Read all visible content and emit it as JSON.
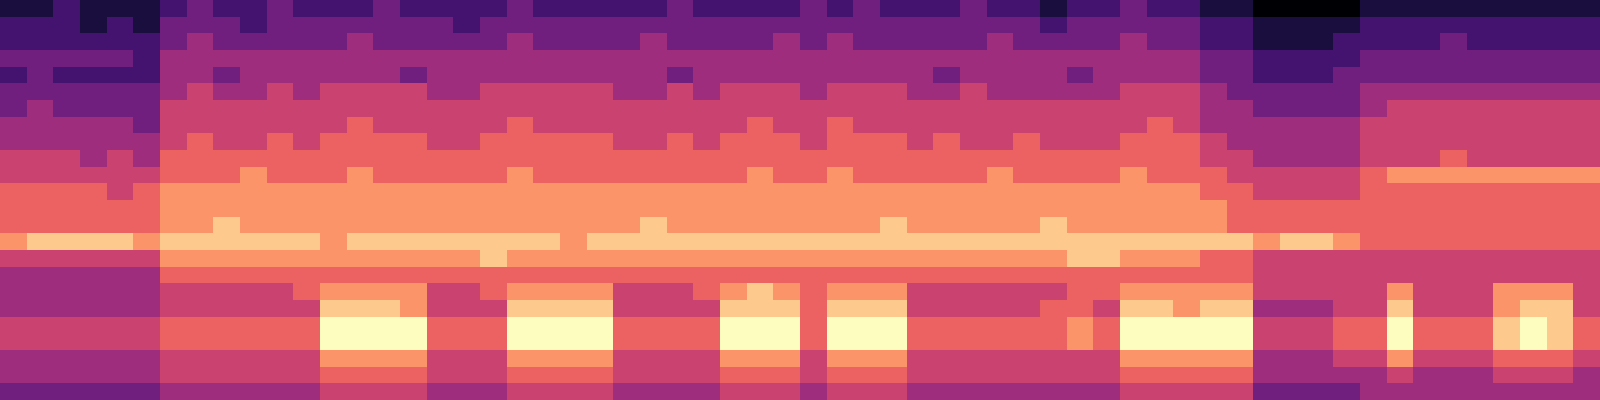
{
  "chart_data": {
    "type": "heatmap",
    "tick_labels": false,
    "zlim": [
      0,
      9
    ],
    "z": [
      [
        1,
        1,
        2,
        1,
        1,
        1,
        2,
        3,
        2,
        2,
        3,
        2,
        2,
        2,
        3,
        2,
        2,
        2,
        2,
        3,
        2,
        2,
        2,
        2,
        2,
        3,
        2,
        2,
        2,
        2,
        3,
        2,
        3,
        2,
        2,
        2,
        3,
        2,
        2,
        1,
        2,
        2,
        3,
        2,
        2,
        1,
        1,
        0,
        0,
        0,
        0,
        1,
        1,
        1,
        1,
        1,
        1,
        1,
        1,
        1
      ],
      [
        2,
        2,
        2,
        1,
        2,
        1,
        3,
        3,
        3,
        2,
        3,
        3,
        3,
        3,
        3,
        3,
        3,
        2,
        3,
        3,
        3,
        3,
        3,
        3,
        3,
        3,
        3,
        3,
        3,
        3,
        3,
        3,
        3,
        3,
        3,
        3,
        3,
        3,
        3,
        2,
        3,
        3,
        3,
        3,
        3,
        2,
        2,
        1,
        1,
        1,
        1,
        2,
        2,
        2,
        2,
        2,
        2,
        2,
        2,
        2
      ],
      [
        2,
        2,
        2,
        2,
        2,
        2,
        3,
        4,
        3,
        3,
        3,
        3,
        3,
        4,
        3,
        3,
        3,
        3,
        3,
        4,
        3,
        3,
        3,
        3,
        4,
        3,
        3,
        3,
        3,
        4,
        3,
        4,
        3,
        3,
        3,
        3,
        3,
        4,
        3,
        3,
        3,
        3,
        4,
        3,
        3,
        2,
        2,
        1,
        1,
        1,
        2,
        2,
        2,
        2,
        3,
        2,
        2,
        2,
        2,
        2
      ],
      [
        3,
        3,
        3,
        3,
        3,
        2,
        4,
        4,
        4,
        4,
        4,
        4,
        4,
        4,
        4,
        4,
        4,
        4,
        4,
        4,
        4,
        4,
        4,
        4,
        4,
        4,
        4,
        4,
        4,
        4,
        4,
        4,
        4,
        4,
        4,
        4,
        4,
        4,
        4,
        4,
        4,
        4,
        4,
        4,
        4,
        3,
        3,
        2,
        2,
        2,
        2,
        3,
        3,
        3,
        3,
        3,
        3,
        3,
        3,
        3
      ],
      [
        2,
        3,
        2,
        2,
        2,
        2,
        4,
        4,
        3,
        4,
        4,
        4,
        4,
        4,
        4,
        3,
        4,
        4,
        4,
        4,
        4,
        4,
        4,
        4,
        4,
        3,
        4,
        4,
        4,
        4,
        4,
        4,
        4,
        4,
        4,
        3,
        4,
        4,
        4,
        4,
        3,
        4,
        4,
        4,
        4,
        3,
        3,
        2,
        2,
        2,
        3,
        3,
        3,
        3,
        3,
        3,
        3,
        3,
        3,
        3
      ],
      [
        3,
        3,
        3,
        3,
        3,
        3,
        4,
        5,
        4,
        4,
        5,
        4,
        5,
        5,
        5,
        5,
        4,
        4,
        5,
        5,
        5,
        5,
        5,
        4,
        4,
        5,
        4,
        5,
        5,
        5,
        4,
        5,
        5,
        5,
        4,
        4,
        5,
        4,
        4,
        4,
        4,
        4,
        5,
        5,
        5,
        4,
        3,
        3,
        3,
        3,
        3,
        4,
        4,
        4,
        4,
        4,
        4,
        4,
        4,
        4
      ],
      [
        3,
        4,
        3,
        3,
        3,
        3,
        5,
        5,
        5,
        5,
        5,
        5,
        5,
        5,
        5,
        5,
        5,
        5,
        5,
        5,
        5,
        5,
        5,
        5,
        5,
        5,
        5,
        5,
        5,
        5,
        5,
        5,
        5,
        5,
        5,
        5,
        5,
        5,
        5,
        5,
        5,
        5,
        5,
        5,
        5,
        4,
        4,
        3,
        3,
        3,
        3,
        4,
        5,
        5,
        5,
        5,
        5,
        5,
        5,
        5
      ],
      [
        4,
        4,
        4,
        4,
        4,
        3,
        5,
        5,
        5,
        5,
        5,
        5,
        5,
        6,
        5,
        5,
        5,
        5,
        5,
        6,
        5,
        5,
        5,
        5,
        5,
        5,
        5,
        5,
        6,
        5,
        5,
        6,
        5,
        5,
        5,
        5,
        5,
        5,
        5,
        5,
        5,
        5,
        5,
        6,
        5,
        4,
        4,
        4,
        4,
        4,
        4,
        5,
        5,
        5,
        5,
        5,
        5,
        5,
        5,
        5
      ],
      [
        4,
        4,
        4,
        4,
        4,
        4,
        5,
        6,
        5,
        5,
        6,
        5,
        6,
        6,
        6,
        6,
        5,
        5,
        6,
        6,
        6,
        6,
        6,
        5,
        5,
        6,
        5,
        6,
        6,
        6,
        5,
        6,
        6,
        6,
        5,
        6,
        5,
        5,
        6,
        5,
        5,
        5,
        6,
        6,
        6,
        5,
        4,
        4,
        4,
        4,
        4,
        5,
        5,
        5,
        5,
        5,
        5,
        5,
        5,
        5
      ],
      [
        5,
        5,
        5,
        4,
        5,
        4,
        6,
        6,
        6,
        6,
        6,
        6,
        6,
        6,
        6,
        6,
        6,
        6,
        6,
        6,
        6,
        6,
        6,
        6,
        6,
        6,
        6,
        6,
        6,
        6,
        6,
        6,
        6,
        6,
        6,
        6,
        6,
        6,
        6,
        6,
        6,
        6,
        6,
        6,
        6,
        5,
        5,
        4,
        4,
        4,
        4,
        5,
        5,
        5,
        6,
        5,
        5,
        5,
        5,
        5
      ],
      [
        5,
        5,
        5,
        5,
        5,
        5,
        6,
        6,
        6,
        7,
        6,
        6,
        6,
        7,
        6,
        6,
        6,
        6,
        6,
        7,
        6,
        6,
        6,
        6,
        6,
        6,
        6,
        6,
        7,
        6,
        6,
        7,
        6,
        6,
        6,
        6,
        6,
        7,
        6,
        6,
        6,
        6,
        7,
        6,
        6,
        6,
        5,
        5,
        5,
        5,
        5,
        6,
        7,
        7,
        7,
        7,
        7,
        7,
        7,
        7
      ],
      [
        6,
        6,
        6,
        6,
        5,
        6,
        7,
        7,
        7,
        7,
        7,
        7,
        7,
        7,
        7,
        7,
        7,
        7,
        7,
        7,
        7,
        7,
        7,
        7,
        7,
        7,
        7,
        7,
        7,
        7,
        7,
        7,
        7,
        7,
        7,
        7,
        7,
        7,
        7,
        7,
        7,
        7,
        7,
        7,
        7,
        6,
        6,
        5,
        5,
        5,
        5,
        6,
        6,
        6,
        6,
        6,
        6,
        6,
        6,
        6
      ],
      [
        6,
        6,
        6,
        6,
        6,
        6,
        7,
        7,
        7,
        7,
        7,
        7,
        7,
        7,
        7,
        7,
        7,
        7,
        7,
        7,
        7,
        7,
        7,
        7,
        7,
        7,
        7,
        7,
        7,
        7,
        7,
        7,
        7,
        7,
        7,
        7,
        7,
        7,
        7,
        7,
        7,
        7,
        7,
        7,
        7,
        7,
        6,
        6,
        6,
        6,
        6,
        6,
        6,
        6,
        6,
        6,
        6,
        6,
        6,
        6
      ],
      [
        6,
        6,
        6,
        6,
        6,
        6,
        7,
        7,
        8,
        7,
        7,
        7,
        7,
        7,
        7,
        7,
        7,
        7,
        7,
        7,
        7,
        7,
        7,
        7,
        8,
        7,
        7,
        7,
        7,
        7,
        7,
        7,
        7,
        8,
        7,
        7,
        7,
        7,
        7,
        8,
        7,
        7,
        7,
        7,
        7,
        7,
        6,
        6,
        6,
        6,
        6,
        6,
        6,
        6,
        6,
        6,
        6,
        6,
        6,
        6
      ],
      [
        7,
        8,
        8,
        8,
        8,
        7,
        8,
        8,
        8,
        8,
        8,
        8,
        7,
        8,
        8,
        8,
        8,
        8,
        8,
        8,
        8,
        7,
        8,
        8,
        8,
        8,
        8,
        8,
        8,
        8,
        8,
        8,
        8,
        8,
        8,
        8,
        8,
        8,
        8,
        8,
        8,
        8,
        8,
        8,
        8,
        8,
        8,
        7,
        8,
        8,
        7,
        6,
        6,
        6,
        6,
        6,
        6,
        6,
        6,
        6
      ],
      [
        5,
        5,
        5,
        5,
        5,
        5,
        7,
        7,
        7,
        7,
        7,
        7,
        7,
        7,
        7,
        7,
        7,
        7,
        8,
        7,
        7,
        7,
        7,
        7,
        7,
        7,
        7,
        7,
        7,
        7,
        7,
        7,
        7,
        7,
        7,
        7,
        7,
        7,
        7,
        7,
        8,
        8,
        7,
        7,
        7,
        6,
        6,
        5,
        5,
        5,
        5,
        5,
        5,
        5,
        5,
        5,
        5,
        5,
        5,
        5
      ],
      [
        4,
        4,
        4,
        4,
        4,
        4,
        6,
        6,
        6,
        6,
        6,
        6,
        6,
        6,
        6,
        6,
        6,
        6,
        6,
        6,
        6,
        6,
        6,
        6,
        6,
        6,
        6,
        6,
        6,
        6,
        6,
        6,
        6,
        6,
        6,
        6,
        6,
        6,
        6,
        6,
        6,
        6,
        6,
        6,
        6,
        6,
        6,
        5,
        5,
        5,
        5,
        5,
        5,
        5,
        5,
        5,
        5,
        5,
        5,
        5
      ],
      [
        4,
        4,
        4,
        4,
        4,
        4,
        5,
        5,
        5,
        5,
        5,
        6,
        7,
        7,
        7,
        7,
        5,
        5,
        6,
        7,
        7,
        7,
        7,
        5,
        5,
        5,
        6,
        7,
        8,
        7,
        6,
        7,
        7,
        7,
        5,
        5,
        5,
        5,
        5,
        5,
        6,
        6,
        7,
        7,
        7,
        7,
        7,
        5,
        5,
        5,
        5,
        5,
        7,
        5,
        5,
        5,
        7,
        7,
        7,
        5
      ],
      [
        4,
        4,
        4,
        4,
        4,
        4,
        5,
        5,
        5,
        5,
        5,
        5,
        8,
        8,
        8,
        7,
        5,
        5,
        5,
        8,
        8,
        8,
        8,
        5,
        5,
        5,
        5,
        8,
        8,
        8,
        6,
        8,
        8,
        8,
        5,
        5,
        5,
        5,
        5,
        6,
        6,
        5,
        8,
        8,
        7,
        8,
        8,
        4,
        4,
        4,
        5,
        5,
        8,
        5,
        5,
        5,
        7,
        8,
        8,
        5
      ],
      [
        5,
        5,
        5,
        5,
        5,
        5,
        6,
        6,
        6,
        6,
        6,
        6,
        9,
        9,
        9,
        9,
        6,
        6,
        6,
        9,
        9,
        9,
        9,
        6,
        6,
        6,
        6,
        9,
        9,
        9,
        6,
        9,
        9,
        9,
        6,
        6,
        6,
        6,
        6,
        6,
        7,
        6,
        9,
        9,
        9,
        9,
        9,
        5,
        5,
        5,
        6,
        6,
        9,
        6,
        6,
        6,
        8,
        9,
        8,
        6
      ],
      [
        5,
        5,
        5,
        5,
        5,
        5,
        6,
        6,
        6,
        6,
        6,
        6,
        9,
        9,
        9,
        9,
        6,
        6,
        6,
        9,
        9,
        9,
        9,
        6,
        6,
        6,
        6,
        9,
        9,
        9,
        6,
        9,
        9,
        9,
        6,
        6,
        6,
        6,
        6,
        6,
        7,
        6,
        9,
        9,
        9,
        9,
        9,
        5,
        5,
        5,
        6,
        6,
        9,
        6,
        6,
        6,
        8,
        9,
        8,
        6
      ],
      [
        4,
        4,
        4,
        4,
        4,
        4,
        5,
        5,
        5,
        5,
        5,
        5,
        7,
        7,
        7,
        7,
        5,
        5,
        5,
        7,
        7,
        7,
        7,
        5,
        5,
        5,
        5,
        7,
        7,
        7,
        5,
        7,
        7,
        7,
        5,
        5,
        5,
        5,
        5,
        5,
        5,
        5,
        7,
        7,
        7,
        7,
        7,
        4,
        4,
        4,
        5,
        5,
        7,
        5,
        5,
        5,
        6,
        6,
        6,
        5
      ],
      [
        4,
        4,
        4,
        4,
        4,
        4,
        5,
        5,
        5,
        5,
        5,
        5,
        6,
        6,
        6,
        6,
        5,
        5,
        5,
        6,
        6,
        6,
        6,
        5,
        5,
        5,
        5,
        6,
        6,
        6,
        5,
        6,
        6,
        6,
        5,
        5,
        5,
        5,
        5,
        5,
        5,
        5,
        6,
        6,
        6,
        6,
        6,
        4,
        4,
        4,
        4,
        4,
        5,
        4,
        4,
        4,
        5,
        5,
        5,
        4
      ],
      [
        3,
        3,
        3,
        3,
        3,
        3,
        4,
        4,
        4,
        4,
        4,
        4,
        5,
        5,
        5,
        5,
        4,
        4,
        4,
        5,
        5,
        5,
        5,
        4,
        4,
        4,
        4,
        5,
        5,
        5,
        4,
        5,
        5,
        5,
        4,
        4,
        4,
        4,
        4,
        4,
        4,
        4,
        5,
        5,
        5,
        5,
        5,
        3,
        3,
        3,
        3,
        4,
        4,
        4,
        4,
        4,
        4,
        4,
        4,
        4
      ]
    ]
  }
}
